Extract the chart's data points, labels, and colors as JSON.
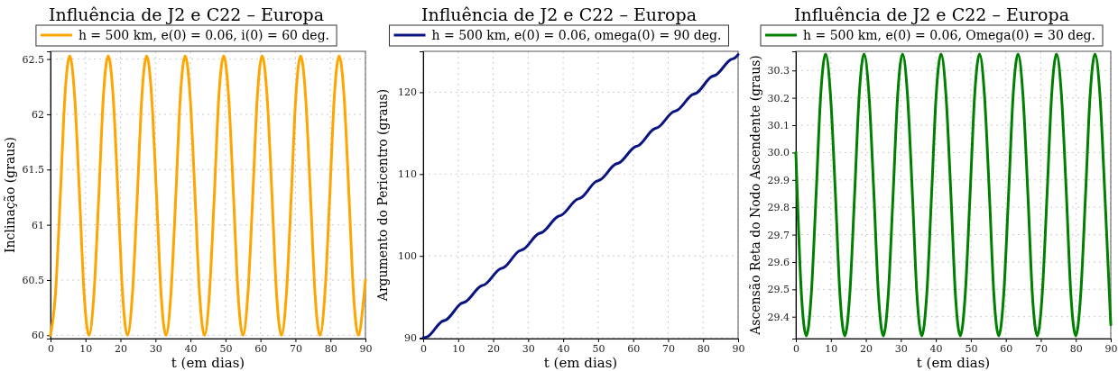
{
  "chart_data": [
    {
      "type": "line",
      "title": "Influência de J2 e C22 – Europa",
      "xlabel": "t (em dias)",
      "ylabel": "Inclinação (graus)",
      "xlim": [
        0,
        90
      ],
      "xticks": [
        0,
        10,
        20,
        30,
        40,
        50,
        60,
        70,
        80,
        90
      ],
      "ylim": [
        59.97,
        62.57
      ],
      "yticks": [
        60,
        60.5,
        61,
        61.5,
        62,
        62.5
      ],
      "grid": true,
      "legend": "top",
      "series": [
        {
          "name": "h = 500 km, e(0) = 0.06, i(0) = 60 deg.",
          "color": "#ffa500",
          "x": [
            0,
            1.4,
            2.8,
            4.1,
            5.5,
            6.9,
            8.3,
            9.6,
            11,
            12.4,
            13.8,
            15.1,
            16.5,
            17.9,
            19.3,
            20.6,
            22,
            23.4,
            24.8,
            26.1,
            27.5,
            28.9,
            30.3,
            31.6,
            33,
            34.4,
            35.8,
            37.1,
            38.5,
            39.9,
            41.3,
            42.6,
            44,
            45.4,
            46.8,
            48.1,
            49.5,
            50.9,
            52.3,
            53.6,
            55,
            56.4,
            57.8,
            59.1,
            60.5,
            61.9,
            63.3,
            64.6,
            66,
            67.4,
            68.8,
            70.1,
            71.5,
            72.9,
            74.3,
            75.6,
            77,
            78.4,
            79.8,
            81.1,
            82.5,
            83.9,
            85.3,
            86.6,
            88,
            89.4,
            90
          ],
          "values": [
            60.0,
            60.37,
            61.26,
            62.16,
            62.53,
            62.16,
            61.26,
            60.37,
            60.0,
            60.37,
            61.26,
            62.16,
            62.53,
            62.16,
            61.26,
            60.37,
            60.0,
            60.37,
            61.26,
            62.16,
            62.53,
            62.16,
            61.26,
            60.37,
            60.0,
            60.37,
            61.26,
            62.16,
            62.53,
            62.16,
            61.26,
            60.37,
            60.0,
            60.37,
            61.26,
            62.16,
            62.53,
            62.16,
            61.26,
            60.37,
            60.0,
            60.37,
            61.26,
            62.16,
            62.53,
            62.16,
            61.26,
            60.37,
            60.0,
            60.37,
            61.26,
            62.16,
            62.53,
            62.16,
            61.26,
            60.37,
            60.0,
            60.37,
            61.26,
            62.16,
            62.53,
            62.16,
            61.26,
            60.37,
            60.0,
            60.3,
            60.5
          ]
        }
      ]
    },
    {
      "type": "line",
      "title": "Influência de J2 e C22 – Europa",
      "xlabel": "t (em dias)",
      "ylabel": "Argumento do Pericentro (graus)",
      "xlim": [
        0,
        90
      ],
      "xticks": [
        0,
        10,
        20,
        30,
        40,
        50,
        60,
        70,
        80,
        90
      ],
      "ylim": [
        89.9,
        125
      ],
      "yticks": [
        90,
        100,
        110,
        120
      ],
      "grid": true,
      "legend": "top",
      "series": [
        {
          "name": "h = 500 km, e(0) = 0.06, omega(0) = 90 deg.",
          "color": "#0a1480",
          "x": [
            0,
            1.1,
            5.4,
            6.6,
            10.9,
            12.1,
            16.4,
            17.6,
            21.9,
            23.1,
            27.4,
            28.6,
            32.9,
            34.1,
            38.4,
            39.6,
            43.9,
            45.1,
            49.4,
            50.6,
            54.9,
            56.1,
            60.4,
            61.6,
            65.9,
            67.1,
            71.4,
            72.6,
            76.9,
            78.1,
            82.4,
            83.6,
            87.9,
            89.1,
            90
          ],
          "values": [
            90.0,
            90.1,
            92.0,
            92.2,
            94.2,
            94.4,
            96.3,
            96.5,
            98.4,
            98.6,
            100.6,
            100.8,
            102.7,
            102.9,
            104.8,
            105.0,
            106.9,
            107.1,
            109.1,
            109.3,
            111.2,
            111.4,
            113.3,
            113.5,
            115.5,
            115.7,
            117.6,
            117.8,
            119.7,
            119.9,
            121.9,
            122.1,
            124.0,
            124.2,
            124.6
          ]
        }
      ]
    },
    {
      "type": "line",
      "title": "Influência de J2 e C22 – Europa",
      "xlabel": "t (em dias)",
      "ylabel": "Ascensão Reta do Nodo Ascendente (graus)",
      "xlim": [
        0,
        90
      ],
      "xticks": [
        0,
        10,
        20,
        30,
        40,
        50,
        60,
        70,
        80,
        90
      ],
      "ylim": [
        29.32,
        30.37
      ],
      "yticks": [
        29.4,
        29.5,
        29.6,
        29.7,
        29.8,
        29.9,
        {
          "value": 30,
          "label": "30.0"
        },
        30.1,
        30.2,
        30.3
      ],
      "grid": true,
      "legend": "top",
      "series": [
        {
          "name": "h = 500 km, e(0) = 0.06, Omega(0) = 30 deg.",
          "color": "#008000",
          "x": [
            0,
            1.6,
            3,
            4.4,
            5.8,
            7.1,
            8.5,
            9.9,
            11.3,
            12.6,
            14,
            15.4,
            16.8,
            18.1,
            19.5,
            20.9,
            22.3,
            23.6,
            25,
            26.4,
            27.8,
            29.1,
            30.5,
            31.9,
            33.3,
            34.6,
            36,
            37.4,
            38.8,
            40.1,
            41.5,
            42.9,
            44.3,
            45.6,
            47,
            48.4,
            49.8,
            51.1,
            52.5,
            53.9,
            55.3,
            56.6,
            58,
            59.4,
            60.8,
            62.1,
            63.5,
            64.9,
            66.3,
            67.6,
            69,
            70.4,
            71.8,
            73.1,
            74.5,
            75.9,
            77.3,
            78.6,
            80,
            81.4,
            82.8,
            84.1,
            85.5,
            86.9,
            88.3,
            90
          ],
          "values": [
            30.0,
            29.48,
            29.33,
            29.48,
            29.85,
            30.21,
            30.36,
            30.21,
            29.85,
            29.48,
            29.33,
            29.48,
            29.85,
            30.21,
            30.36,
            30.21,
            29.85,
            29.48,
            29.33,
            29.48,
            29.85,
            30.21,
            30.36,
            30.21,
            29.85,
            29.48,
            29.33,
            29.48,
            29.85,
            30.21,
            30.36,
            30.21,
            29.85,
            29.48,
            29.33,
            29.48,
            29.85,
            30.21,
            30.36,
            30.21,
            29.85,
            29.48,
            29.33,
            29.48,
            29.85,
            30.21,
            30.36,
            30.21,
            29.85,
            29.48,
            29.33,
            29.48,
            29.85,
            30.21,
            30.36,
            30.21,
            29.85,
            29.48,
            29.33,
            29.48,
            29.85,
            30.21,
            30.36,
            30.21,
            29.85,
            29.37
          ]
        }
      ]
    }
  ]
}
